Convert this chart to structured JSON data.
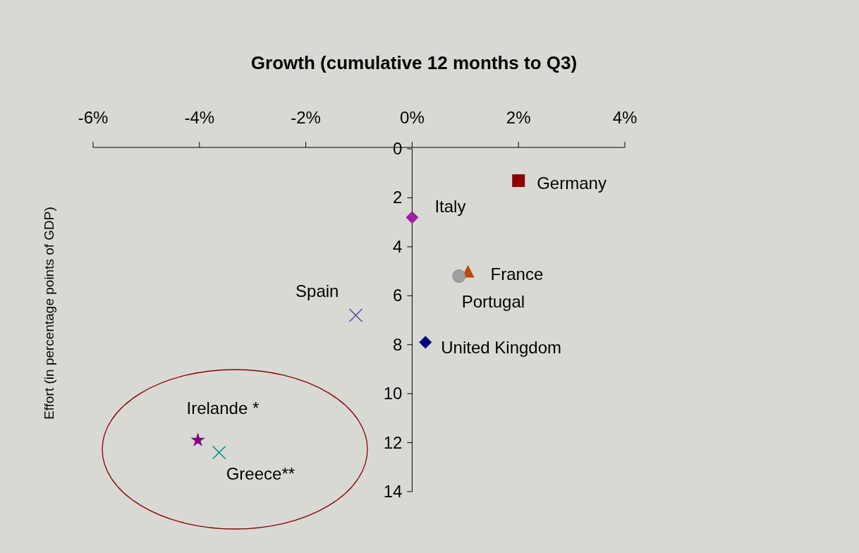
{
  "chart_data": {
    "type": "scatter",
    "title": "Growth (cumulative 12 months to Q3)",
    "ylabel": "Effort (in percentage points of GDP)",
    "xlim": [
      -6,
      4
    ],
    "xticks": [
      {
        "value": -6,
        "label": "-6%"
      },
      {
        "value": -4,
        "label": "-4%"
      },
      {
        "value": -2,
        "label": "-2%"
      },
      {
        "value": 0,
        "label": "0%"
      },
      {
        "value": 2,
        "label": "2%"
      },
      {
        "value": 4,
        "label": "4%"
      }
    ],
    "ylim": [
      14,
      0
    ],
    "yticks": [
      0,
      2,
      4,
      6,
      8,
      10,
      12,
      14
    ],
    "grid": false,
    "series": [
      {
        "name": "Germany",
        "color": "#8b0000",
        "marker": "square",
        "x": [
          2.0
        ],
        "values": [
          1.3
        ]
      },
      {
        "name": "Italy",
        "color": "#a020a0",
        "marker": "diamond",
        "x": [
          0.0
        ],
        "values": [
          2.8
        ]
      },
      {
        "name": "France",
        "color": "#b84a0a",
        "marker": "triangle",
        "x": [
          1.05
        ],
        "values": [
          5.0
        ]
      },
      {
        "name": "Portugal",
        "color": "#a0a0a0",
        "marker": "circle",
        "x": [
          0.88
        ],
        "values": [
          5.2
        ]
      },
      {
        "name": "Spain",
        "color": "#5050a8",
        "marker": "cross",
        "x": [
          -1.06
        ],
        "values": [
          6.8
        ]
      },
      {
        "name": "United Kingdom",
        "color": "#000080",
        "marker": "diamond",
        "x": [
          0.25
        ],
        "values": [
          7.9
        ]
      },
      {
        "name": "Irelande *",
        "color": "#800080",
        "marker": "star",
        "x": [
          -4.03
        ],
        "values": [
          11.9
        ]
      },
      {
        "name": "Greece**",
        "color": "#008b8b",
        "marker": "cross",
        "x": [
          -3.63
        ],
        "values": [
          12.4
        ]
      }
    ]
  }
}
